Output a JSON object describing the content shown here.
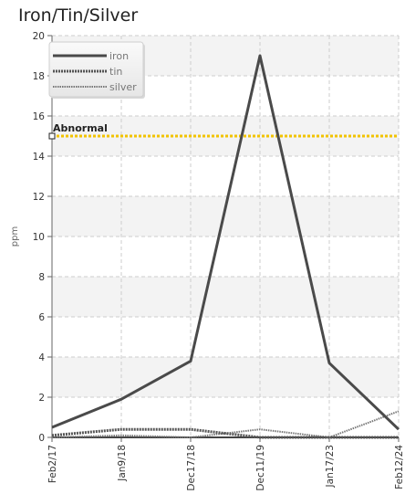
{
  "chart_data": {
    "type": "line",
    "title": "Iron/Tin/Silver",
    "xlabel": "",
    "ylabel": "ppm",
    "categories": [
      "Feb2/17",
      "Jan9/18",
      "Dec17/18",
      "Dec11/19",
      "Jan17/23",
      "Feb12/24"
    ],
    "ylim": [
      0,
      20
    ],
    "yticks": [
      0,
      2,
      4,
      6,
      8,
      10,
      12,
      14,
      16,
      18,
      20
    ],
    "grid": true,
    "legend_position": "top-left",
    "series": [
      {
        "name": "iron",
        "values": [
          0.5,
          1.9,
          3.8,
          19.0,
          3.7,
          0.4
        ],
        "color": "#4a4a4a",
        "style": "solid"
      },
      {
        "name": "tin",
        "values": [
          0.1,
          0.4,
          0.4,
          0.0,
          0.0,
          0.0
        ],
        "color": "#555555",
        "style": "dashed"
      },
      {
        "name": "silver",
        "values": [
          0.0,
          0.1,
          0.0,
          0.4,
          0.0,
          1.3
        ],
        "color": "#777777",
        "style": "dotted"
      }
    ],
    "threshold": {
      "label": "Abnormal",
      "value": 15,
      "color": "#f2c300"
    }
  }
}
